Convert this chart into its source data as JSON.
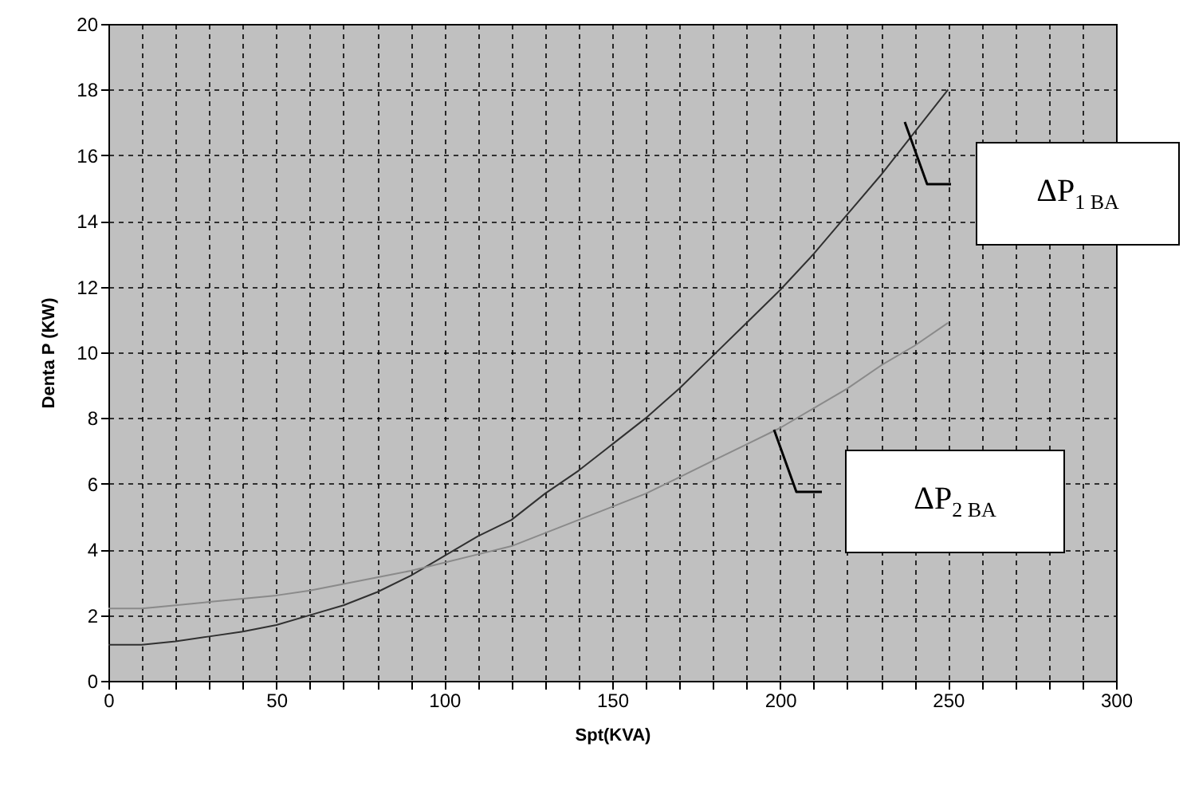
{
  "chart_data": {
    "type": "line",
    "xlabel": "Spt(KVA)",
    "ylabel": "Denta P (KW)",
    "x": [
      0,
      10,
      20,
      30,
      40,
      50,
      60,
      70,
      80,
      90,
      100,
      110,
      120,
      130,
      140,
      150,
      160,
      170,
      180,
      190,
      200,
      210,
      220,
      230,
      240,
      250
    ],
    "series": [
      {
        "color": "#303030",
        "values": [
          1.1,
          1.1,
          1.2,
          1.35,
          1.5,
          1.7,
          2.0,
          2.3,
          2.7,
          3.2,
          3.8,
          4.4,
          4.9,
          5.7,
          6.4,
          7.2,
          8.0,
          8.9,
          9.9,
          10.9,
          11.9,
          13.0,
          14.2,
          15.4,
          16.7,
          18.0
        ]
      },
      {
        "color": "#8a8a8a",
        "values": [
          2.2,
          2.2,
          2.3,
          2.4,
          2.5,
          2.6,
          2.75,
          2.95,
          3.15,
          3.35,
          3.6,
          3.85,
          4.1,
          4.5,
          4.9,
          5.3,
          5.7,
          6.2,
          6.7,
          7.2,
          7.7,
          8.3,
          8.9,
          9.6,
          10.2,
          10.9
        ]
      }
    ],
    "xlim": [
      0,
      300
    ],
    "ylim": [
      0,
      20
    ],
    "xticks": [
      0,
      {
        "value": 10,
        "label": null
      },
      {
        "value": 20,
        "label": null
      },
      {
        "value": 30,
        "label": null
      },
      {
        "value": 40,
        "label": null
      },
      50,
      {
        "value": 60,
        "label": null
      },
      {
        "value": 70,
        "label": null
      },
      {
        "value": 80,
        "label": null
      },
      {
        "value": 90,
        "label": null
      },
      100,
      {
        "value": 110,
        "label": null
      },
      {
        "value": 120,
        "label": null
      },
      {
        "value": 130,
        "label": null
      },
      {
        "value": 140,
        "label": null
      },
      150,
      {
        "value": 160,
        "label": null
      },
      {
        "value": 170,
        "label": null
      },
      {
        "value": 180,
        "label": null
      },
      {
        "value": 190,
        "label": null
      },
      200,
      {
        "value": 210,
        "label": null
      },
      {
        "value": 220,
        "label": null
      },
      {
        "value": 230,
        "label": null
      },
      {
        "value": 240,
        "label": null
      },
      250,
      {
        "value": 260,
        "label": null
      },
      {
        "value": 270,
        "label": null
      },
      {
        "value": 280,
        "label": null
      },
      {
        "value": 290,
        "label": null
      },
      300
    ],
    "yticks": [
      0,
      2,
      4,
      6,
      8,
      10,
      12,
      14,
      16,
      18,
      20
    ],
    "grid": true,
    "annotations": [
      "ΔP$_{1 BA}$",
      "ΔP$_{2 BA}$"
    ]
  }
}
